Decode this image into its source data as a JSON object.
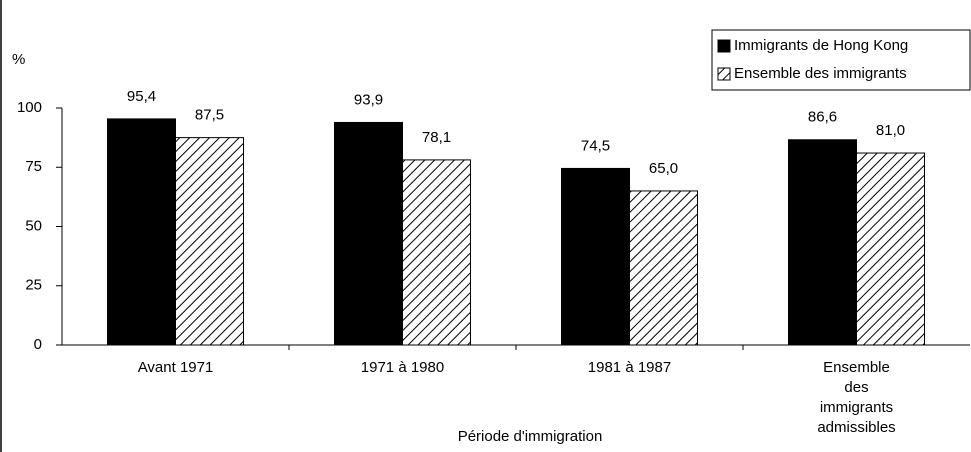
{
  "chart_data": {
    "type": "bar",
    "y_label": "%",
    "x_label": "Période d'immigration",
    "categories": [
      "Avant 1971",
      "1971 à 1980",
      "1981 à 1987",
      "Ensemble des immigrants admissibles"
    ],
    "series": [
      {
        "name": "Immigrants de Hong Kong",
        "color": "#000000",
        "pattern": "solid",
        "values": [
          95.4,
          93.9,
          74.5,
          86.6
        ],
        "value_labels": [
          "95,4",
          "93,9",
          "74,5",
          "86,6"
        ]
      },
      {
        "name": "Ensemble des immigrants",
        "color": "#000000",
        "pattern": "hatch",
        "values": [
          87.5,
          78.1,
          65.0,
          81.0
        ],
        "value_labels": [
          "87,5",
          "78,1",
          "65,0",
          "81,0"
        ]
      }
    ],
    "ylim": [
      0,
      100
    ],
    "yticks": [
      0,
      25,
      50,
      75,
      100
    ],
    "grid": false,
    "legend": "top-right"
  }
}
